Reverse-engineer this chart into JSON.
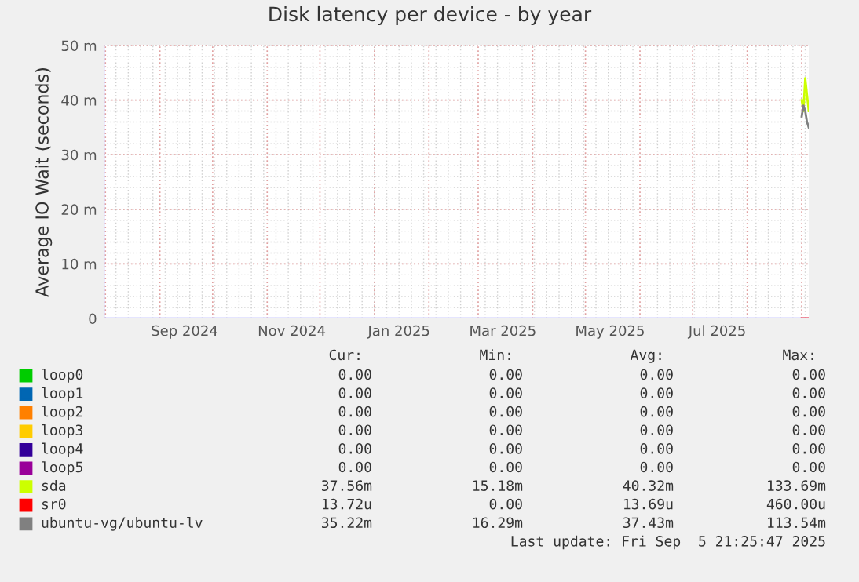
{
  "chart_data": {
    "type": "line",
    "title": "Disk latency per device - by year",
    "ylabel": "Average IO Wait (seconds)",
    "xlim": [
      "2024-07-31",
      "2025-09-05"
    ],
    "xticks": [
      {
        "value": "2024-09-15",
        "label": "Sep 2024"
      },
      {
        "value": "2024-11-15",
        "label": "Nov 2024"
      },
      {
        "value": "2025-01-15",
        "label": "Jan 2025"
      },
      {
        "value": "2025-03-15",
        "label": "Mar 2025"
      },
      {
        "value": "2025-05-15",
        "label": "May 2025"
      },
      {
        "value": "2025-07-15",
        "label": "Jul 2025"
      }
    ],
    "ylim": [
      0,
      50
    ],
    "yticks": [
      0,
      {
        "value": 10,
        "label": "10 m"
      },
      {
        "value": 20,
        "label": "20 m"
      },
      {
        "value": 30,
        "label": "30 m"
      },
      {
        "value": 40,
        "label": "40 m"
      },
      {
        "value": 50,
        "label": "50 m"
      }
    ],
    "grid": true,
    "legend": "bottom",
    "marker": "none",
    "line_style": "solid",
    "series": [
      {
        "name": "loop0",
        "color": "#00cc00"
      },
      {
        "name": "loop1",
        "color": "#0066b3"
      },
      {
        "name": "loop2",
        "color": "#ff8000"
      },
      {
        "name": "loop3",
        "color": "#ffcc00"
      },
      {
        "name": "loop4",
        "color": "#330099"
      },
      {
        "name": "loop5",
        "color": "#990099"
      },
      {
        "name": "sda",
        "color": "#ccff00",
        "x": [
          "2025-09-01",
          "2025-09-02",
          "2025-09-03",
          "2025-09-04",
          "2025-09-05"
        ],
        "values": [
          40,
          38,
          44,
          41,
          38
        ]
      },
      {
        "name": "sr0",
        "color": "#ff0000",
        "x": [
          "2025-09-01",
          "2025-09-02",
          "2025-09-03",
          "2025-09-04",
          "2025-09-05"
        ],
        "values": [
          0,
          0,
          0,
          0,
          0
        ]
      },
      {
        "name": "ubuntu-vg/ubuntu-lv",
        "color": "#808080",
        "x": [
          "2025-09-01",
          "2025-09-02",
          "2025-09-03",
          "2025-09-04",
          "2025-09-05"
        ],
        "values": [
          37,
          39,
          38,
          36,
          35
        ]
      }
    ],
    "annotations": [
      "Cur:",
      "Min:",
      "Avg:",
      "Max:",
      "0.00",
      "0.00",
      "0.00",
      "0.00",
      "0.00",
      "0.00",
      "0.00",
      "0.00",
      "0.00",
      "0.00",
      "0.00",
      "0.00",
      "0.00",
      "0.00",
      "0.00",
      "0.00",
      "0.00",
      "0.00",
      "0.00",
      "0.00",
      "0.00",
      "0.00",
      "0.00",
      "0.00",
      "37.56m",
      "15.18m",
      "40.32m",
      "133.69m",
      "13.72u",
      "0.00",
      "13.69u",
      "460.00u",
      "35.22m",
      "16.29m",
      "37.43m",
      "113.54m",
      "Last update: Fri Sep  5 21:25:47 2025"
    ]
  }
}
